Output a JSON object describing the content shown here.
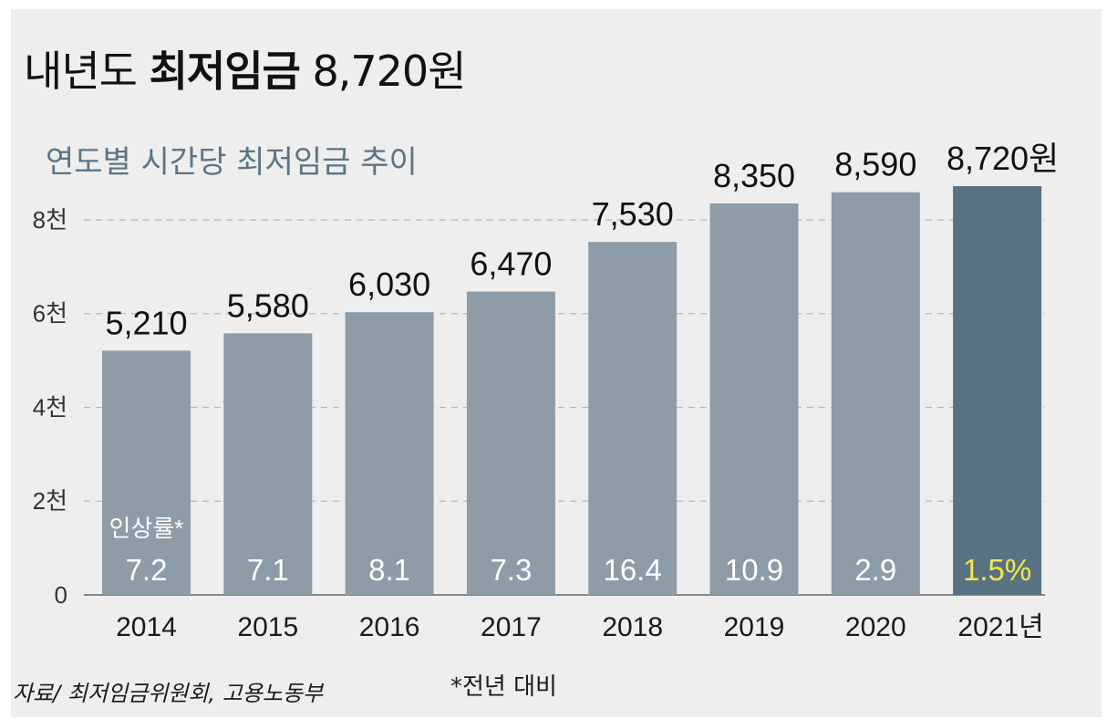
{
  "title": {
    "normal": "내년도",
    "bold": "최저임금",
    "value": "8,720원"
  },
  "subtitle": "연도별 시간당 최저임금 추이",
  "source": "자료/ 최저임금위원회, 고용노동부",
  "note": "*전년 대비",
  "colors": {
    "bar": "#8d9ca6",
    "bar_highlight": "#587282",
    "rate_text": "#ffffff",
    "rate_highlight": "#f2e84a",
    "grid": "#b9b9b9",
    "axis": "#666666"
  },
  "chart_data": {
    "type": "bar",
    "title": "연도별 시간당 최저임금 추이",
    "categories": [
      "2014",
      "2015",
      "2016",
      "2017",
      "2018",
      "2019",
      "2020",
      "2021년"
    ],
    "values": [
      5210,
      5580,
      6030,
      6470,
      7530,
      8350,
      8590,
      8720
    ],
    "value_labels": [
      "5,210",
      "5,580",
      "6,030",
      "6,470",
      "7,530",
      "8,350",
      "8,590",
      "8,720원"
    ],
    "rate_label": "인상률*",
    "rates": [
      "7.2",
      "7.1",
      "8.1",
      "7.3",
      "16.4",
      "10.9",
      "2.9",
      "1.5%"
    ],
    "highlight_index": 7,
    "ylim": [
      0,
      8720
    ],
    "yticks": [
      0,
      2000,
      4000,
      6000,
      8000
    ],
    "ytick_labels": [
      "0",
      "2천",
      "4천",
      "6천",
      "8천"
    ],
    "grid": true,
    "xlabel": "",
    "ylabel": ""
  }
}
